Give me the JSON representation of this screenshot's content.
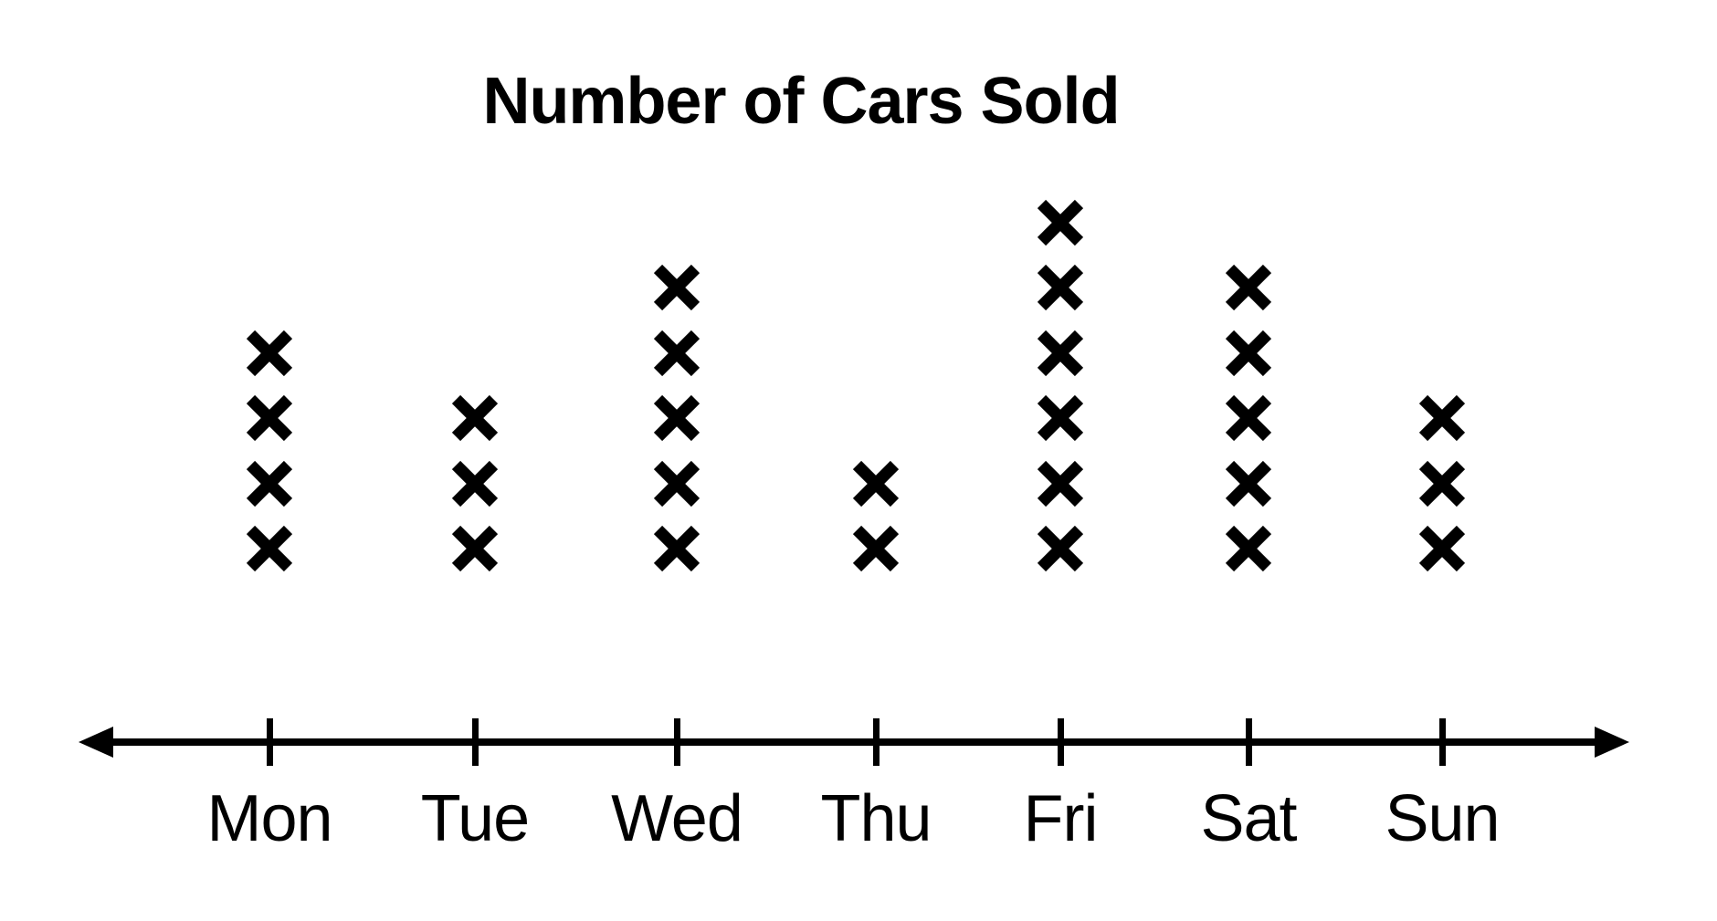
{
  "chart_data": {
    "type": "dot_plot",
    "marker": "x",
    "title": "Number of Cars Sold",
    "categories": [
      "Mon",
      "Tue",
      "Wed",
      "Thu",
      "Fri",
      "Sat",
      "Sun"
    ],
    "values": [
      4,
      3,
      5,
      2,
      6,
      5,
      3
    ],
    "xlabel": "",
    "ylabel": "",
    "ylim": [
      0,
      6
    ],
    "grid": false,
    "legend": "none",
    "axis_style": "horizontal number line with arrowheads on both ends and one tick below each category label"
  },
  "colors": {
    "foreground": "#000000",
    "background": "#ffffff"
  }
}
